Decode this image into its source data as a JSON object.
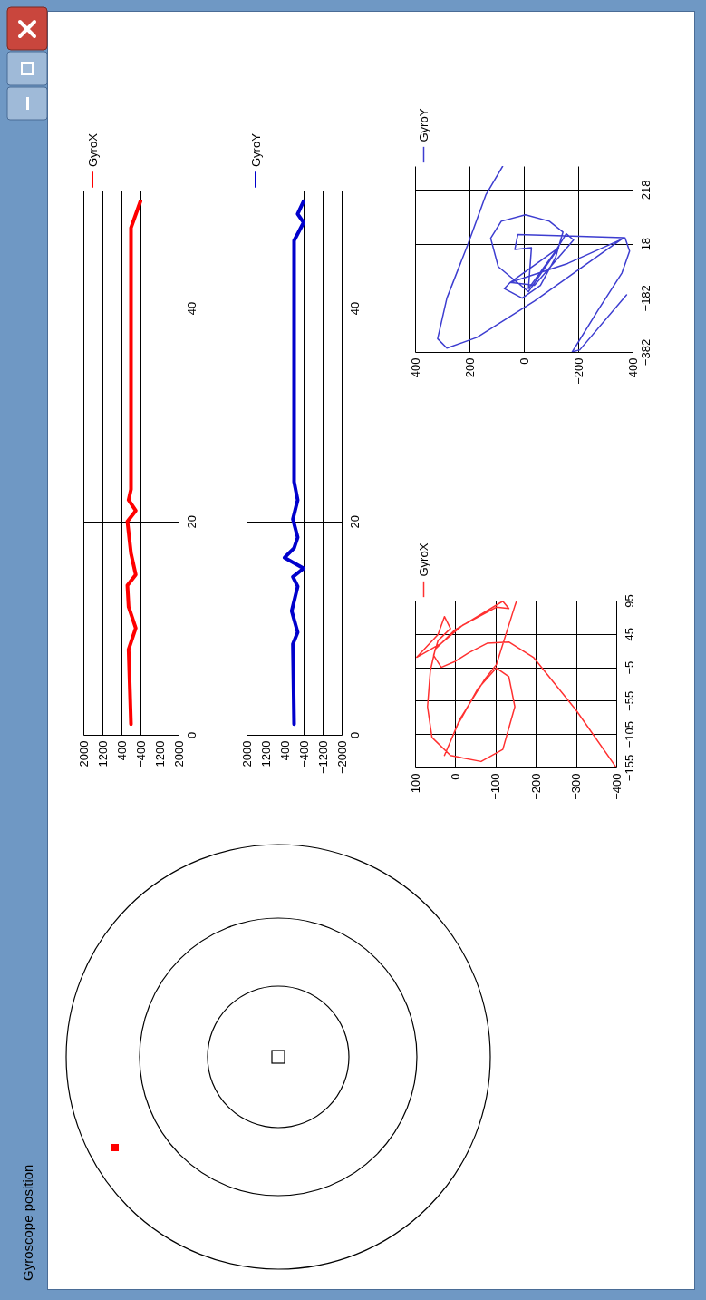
{
  "chart_data": [
    {
      "type": "other",
      "title": "Gyroscope position"
    },
    {
      "type": "line",
      "xlim": [
        2000,
        -2000
      ],
      "xticks": [
        2000,
        1200,
        400,
        -400,
        -1200,
        -2000
      ],
      "ylim": [
        0,
        51
      ],
      "yticks": [
        0,
        20,
        40
      ],
      "grid": true,
      "legend": "top left",
      "series": [
        {
          "name": "GyroX",
          "color": "#ff0000",
          "x": [
            0,
            100,
            -200,
            100,
            150,
            -200,
            0,
            150,
            -200,
            100,
            0,
            0,
            -400
          ],
          "values": [
            1,
            8,
            10,
            12,
            14,
            15,
            17,
            20,
            21,
            22,
            23,
            47.5,
            50
          ]
        }
      ]
    },
    {
      "type": "line",
      "xlim": [
        2000,
        -2000
      ],
      "xticks": [
        2000,
        1200,
        400,
        -400,
        -1200,
        -2000
      ],
      "ylim": [
        0,
        51
      ],
      "yticks": [
        0,
        20,
        40
      ],
      "grid": true,
      "legend": "top left",
      "series": [
        {
          "name": "GyroY",
          "color": "#0000cc",
          "x": [
            0,
            50,
            -150,
            100,
            -150,
            50,
            -400,
            400,
            0,
            -150,
            50,
            -150,
            0,
            0,
            -400,
            -150,
            -400
          ],
          "values": [
            1,
            8.5,
            9.6,
            11.6,
            13.9,
            14.8,
            15.6,
            16.6,
            17.5,
            18.5,
            20.2,
            22,
            23.7,
            46.3,
            48,
            48.8,
            50
          ]
        }
      ]
    },
    {
      "type": "line",
      "xlim": [
        100,
        -400
      ],
      "xticks": [
        100,
        0,
        -100,
        -200,
        -300,
        -400
      ],
      "ylim": [
        -155,
        95
      ],
      "yticks": [
        -155,
        -105,
        -55,
        -5,
        45,
        95
      ],
      "grid": true,
      "legend": "top left",
      "series": [
        {
          "name": "GyroX",
          "color": "#ff3030",
          "x": [
            -400,
            -300,
            -194,
            -133,
            -79,
            -34,
            0,
            35,
            54,
            43,
            12,
            27,
            43,
            96,
            35,
            -18,
            -102,
            -133,
            -118,
            -49,
            1,
            50,
            62,
            69,
            58,
            12,
            -64,
            -118,
            -148,
            -133,
            -102,
            -56,
            -5,
            27,
            -11,
            -72,
            -102,
            -148,
            -152
          ],
          "values": [
            -155,
            -69,
            10,
            33,
            31,
            17,
            4,
            -5,
            13,
            35,
            53,
            71,
            44,
            10,
            31,
            58,
            85,
            83,
            94,
            69,
            51,
            22,
            -10,
            -64,
            -110,
            -137,
            -146,
            -128,
            -64,
            -19,
            -6,
            -37,
            -92,
            -137,
            -83,
            -24,
            -1,
            87,
            94
          ]
        }
      ]
    },
    {
      "type": "line",
      "xlim": [
        400,
        -400
      ],
      "xticks": [
        400,
        200,
        0,
        -200,
        -400
      ],
      "ylim": [
        -382,
        305
      ],
      "yticks": [
        -382,
        -182,
        18,
        218
      ],
      "grid": true,
      "legend": "top left",
      "series": [
        {
          "name": "GyroY",
          "color": "#3d3dd0",
          "x": [
            78,
            139,
            206,
            283,
            317,
            283,
            172,
            -39,
            -250,
            -367,
            -150,
            22,
            33,
            -28,
            -17,
            -117,
            -156,
            -183,
            -39,
            50,
            -128,
            -17,
            94,
            122,
            83,
            -6,
            -94,
            -144,
            -117,
            -61,
            6,
            72,
            50,
            -161,
            -372,
            -389,
            -361,
            -272,
            -178,
            -206,
            -378
          ],
          "values": [
            304,
            200,
            15,
            -183,
            -333,
            -368,
            -328,
            -194,
            -43,
            40,
            47,
            52,
            -3,
            3,
            -148,
            -9,
            55,
            32,
            -136,
            -125,
            3,
            -159,
            -67,
            38,
            101,
            125,
            101,
            61,
            -32,
            -136,
            -183,
            -148,
            -125,
            -55,
            40,
            -9,
            -90,
            -229,
            -382,
            -374,
            -171
          ]
        }
      ]
    }
  ]
}
